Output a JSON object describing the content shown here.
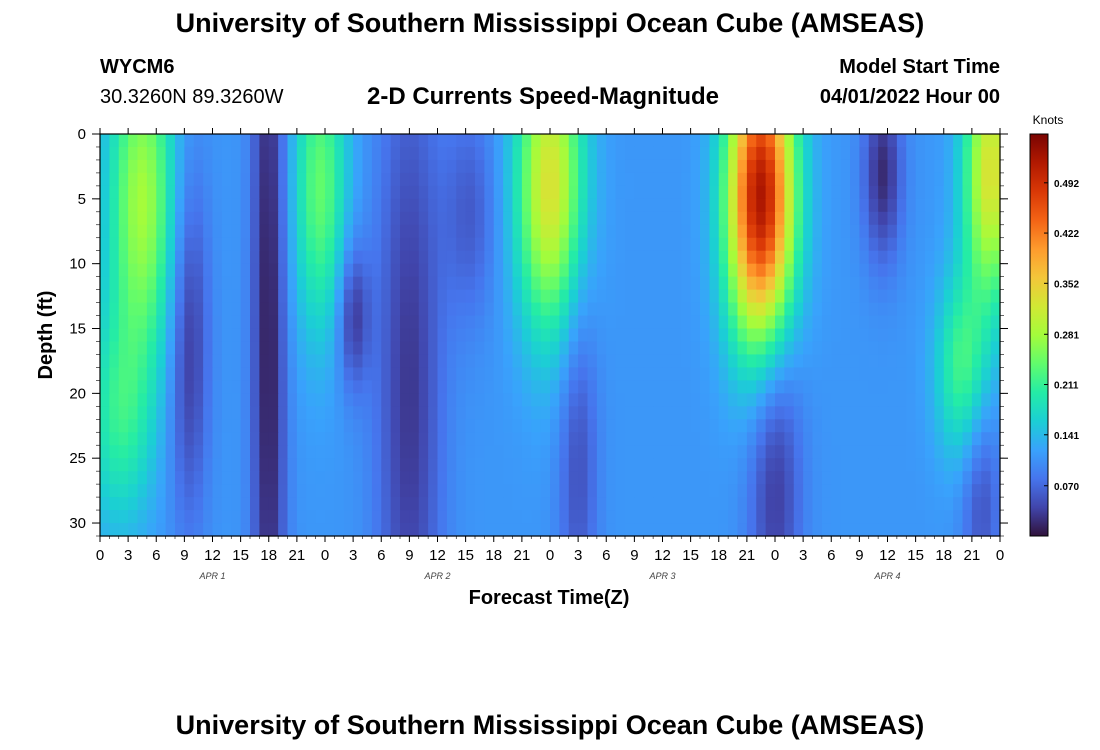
{
  "header": {
    "title": "University of Southern Mississippi Ocean Cube (AMSEAS)",
    "station_id": "WYCM6",
    "station_coords": "30.3260N  89.3260W",
    "subtitle": "2-D Currents Speed-Magnitude",
    "model_start_label": "Model Start Time",
    "model_start_value": "04/01/2022 Hour 00"
  },
  "footer": {
    "title": "University of Southern Mississippi Ocean Cube (AMSEAS)"
  },
  "colors": {
    "colormap": [
      "#30123b",
      "#4145ab",
      "#4675ed",
      "#39a2fc",
      "#1bcfd4",
      "#24eca6",
      "#61fc6c",
      "#a4fc3b",
      "#d1e834",
      "#f3c63a",
      "#fe9b2d",
      "#f36315",
      "#d93806",
      "#b11901",
      "#7a0402"
    ]
  },
  "chart_data": {
    "type": "heatmap",
    "xlabel": "Forecast Time(Z)",
    "ylabel": "Depth (ft)",
    "x_ticks": [
      "0",
      "3",
      "6",
      "9",
      "12",
      "15",
      "18",
      "21",
      "0",
      "3",
      "6",
      "9",
      "12",
      "15",
      "18",
      "21",
      "0",
      "3",
      "6",
      "9",
      "12",
      "15",
      "18",
      "21",
      "0",
      "3",
      "6",
      "9",
      "12",
      "15",
      "18",
      "21",
      "0"
    ],
    "date_labels": [
      {
        "label": "APR 1",
        "hour": 12
      },
      {
        "label": "APR 2",
        "hour": 36
      },
      {
        "label": "APR 3",
        "hour": 60
      },
      {
        "label": "APR 4",
        "hour": 84
      }
    ],
    "x_range_hours": [
      0,
      96
    ],
    "y_range_ft": [
      0,
      31
    ],
    "y_inverted": true,
    "y_ticks": [
      "0",
      "5",
      "10",
      "15",
      "20",
      "25",
      "30"
    ],
    "colorbar": {
      "label": "Knots",
      "range": [
        0,
        0.56
      ],
      "ticks": [
        "0.070",
        "0.141",
        "0.211",
        "0.281",
        "0.352",
        "0.422",
        "0.492"
      ]
    },
    "features": [
      {
        "hour": 4.5,
        "depth": 5,
        "value": 0.28,
        "sx": 2.5,
        "sy": 9
      },
      {
        "hour": 2,
        "depth": 22,
        "value": 0.2,
        "sx": 2.5,
        "sy": 6
      },
      {
        "hour": 9.5,
        "depth": 16,
        "value": 0.03,
        "sx": 1.5,
        "sy": 10
      },
      {
        "hour": 18,
        "depth": 15,
        "value": 0.01,
        "sx": 1.3,
        "sy": 30
      },
      {
        "hour": 23.5,
        "depth": 4,
        "value": 0.24,
        "sx": 2,
        "sy": 8
      },
      {
        "hour": 27,
        "depth": 14,
        "value": 0.03,
        "sx": 1.2,
        "sy": 4
      },
      {
        "hour": 33,
        "depth": 20,
        "value": 0.03,
        "sx": 2.5,
        "sy": 20
      },
      {
        "hour": 39.5,
        "depth": 6,
        "value": 0.06,
        "sx": 2,
        "sy": 6
      },
      {
        "hour": 48,
        "depth": 4,
        "value": 0.33,
        "sx": 2.5,
        "sy": 8
      },
      {
        "hour": 51,
        "depth": 25,
        "value": 0.05,
        "sx": 1.5,
        "sy": 10
      },
      {
        "hour": 70.5,
        "depth": 5,
        "value": 0.53,
        "sx": 2.5,
        "sy": 8
      },
      {
        "hour": 72,
        "depth": 26,
        "value": 0.03,
        "sx": 2,
        "sy": 10
      },
      {
        "hour": 83.5,
        "depth": 3,
        "value": 0.02,
        "sx": 1.5,
        "sy": 5
      },
      {
        "hour": 92,
        "depth": 18,
        "value": 0.22,
        "sx": 2,
        "sy": 5
      },
      {
        "hour": 95,
        "depth": 3,
        "value": 0.33,
        "sx": 2,
        "sy": 7
      },
      {
        "hour": 94,
        "depth": 28,
        "value": 0.05,
        "sx": 1.5,
        "sy": 6
      }
    ]
  }
}
